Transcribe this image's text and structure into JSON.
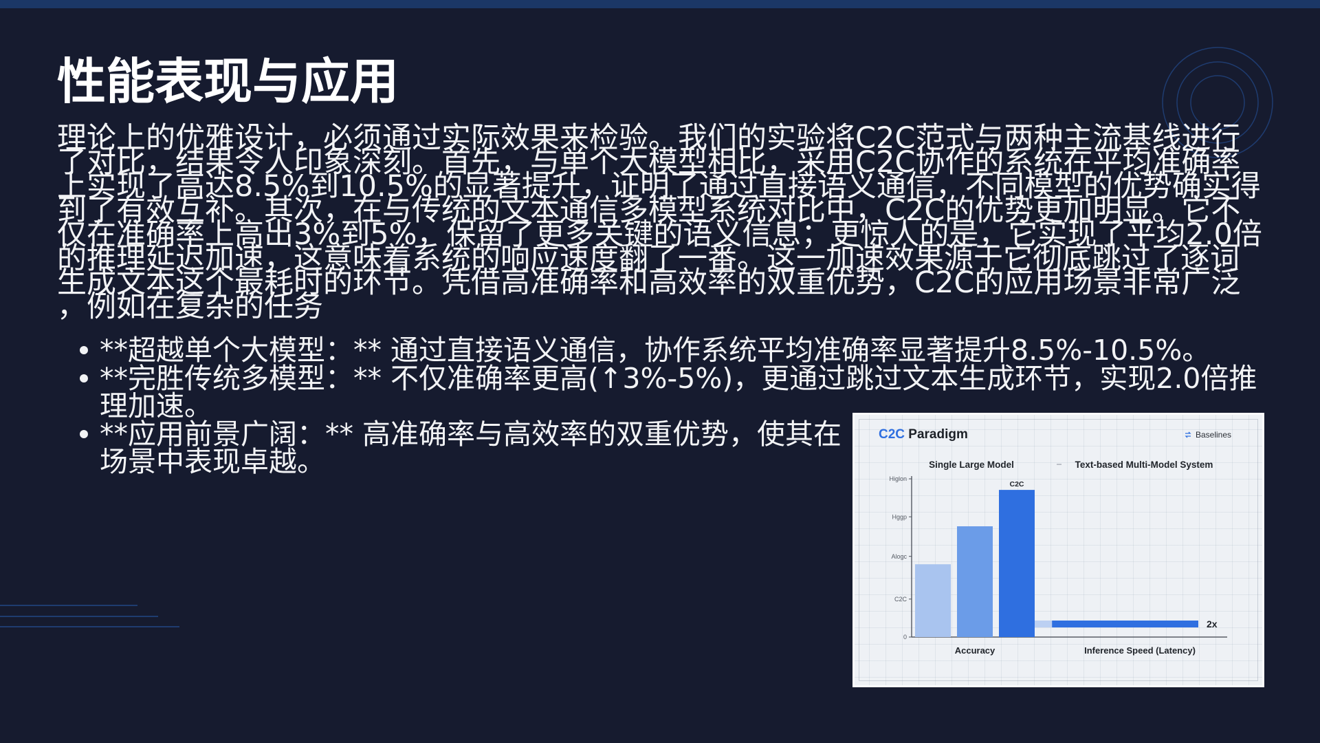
{
  "slide": {
    "title": "性能表现与应用",
    "paragraph_lines": [
      "理论上的优雅设计，必须通过实际效果来检验。我们的实验将C2C范式与两种主流基线进行",
      "了对比，结果令人印象深刻。首先，与单个大模型相比，采用C2C协作的系统在平均准确率",
      "上实现了高达8.5%到10.5%的显著提升，证明了通过直接语义通信，不同模型的优势确实得",
      "到了有效互补。其次，在与传统的文本通信多模型系统对比中，C2C的优势更加明显。它不",
      "仅在准确率上高出3%到5%，保留了更多关键的语义信息；更惊人的是，它实现了平均2.0倍",
      "的推理延迟加速，这意味着系统的响应速度翻了一番。这一加速效果源于它彻底跳过了逐词",
      "生成文本这个最耗时的环节。凭借高准确率和高效率的双重优势，C2C的应用场景非常广泛",
      "，例如在复杂的任务"
    ],
    "bullets": [
      {
        "lines": [
          "**超越单个大模型：** 通过直接语义通信，协作系统平均准确率显著提升8.5%-10.5%。"
        ]
      },
      {
        "lines": [
          "**完胜传统多模型：** 不仅准确率更高(↑3%-5%)，更通过跳过文本生成环节，实现2.0倍推",
          "理加速。"
        ]
      },
      {
        "lines": [
          "**应用前景广阔：** 高准确率与高效率的双重优势，使其在",
          "场景中表现卓越。"
        ]
      }
    ]
  },
  "colors": {
    "background": "#161b2f",
    "top_bar": "#1b3766",
    "decoration": "#1f3c70",
    "text": "#f2f3f5",
    "chart_accent": "#2f6fe0"
  },
  "chart_data": {
    "type": "bar",
    "title_highlight": "C2C",
    "title_rest": "Paradigm",
    "legend": {
      "label": "Baselines"
    },
    "ylim": [
      0,
      1
    ],
    "y_ticks": [
      {
        "label": "Higlon",
        "value": 1.0
      },
      {
        "label": "Hggp",
        "value": 0.76
      },
      {
        "label": "Alogc",
        "value": 0.51
      },
      {
        "label": "C2C",
        "value": 0.24
      },
      {
        "label": "0",
        "value": 0
      }
    ],
    "groups": [
      {
        "header": "Single Large Model",
        "xlabel": "Accuracy",
        "orientation": "vertical",
        "bars": [
          {
            "value": 0.46,
            "color": "#a9c4ef"
          },
          {
            "value": 0.7,
            "color": "#6b9ce8"
          },
          {
            "value": 0.93,
            "color": "#2f6fe0",
            "label": "C2C"
          }
        ]
      },
      {
        "header": "Text-based Multi-Model System",
        "xlabel": "Inference Speed (Latency)",
        "orientation": "horizontal-stacked",
        "bars": [
          {
            "value": 0.09,
            "color": "#bcd0f2"
          },
          {
            "value": 0.76,
            "color": "#2f6fe0",
            "label": "2x"
          }
        ]
      }
    ],
    "grid": false,
    "legend_position": "top-right"
  }
}
